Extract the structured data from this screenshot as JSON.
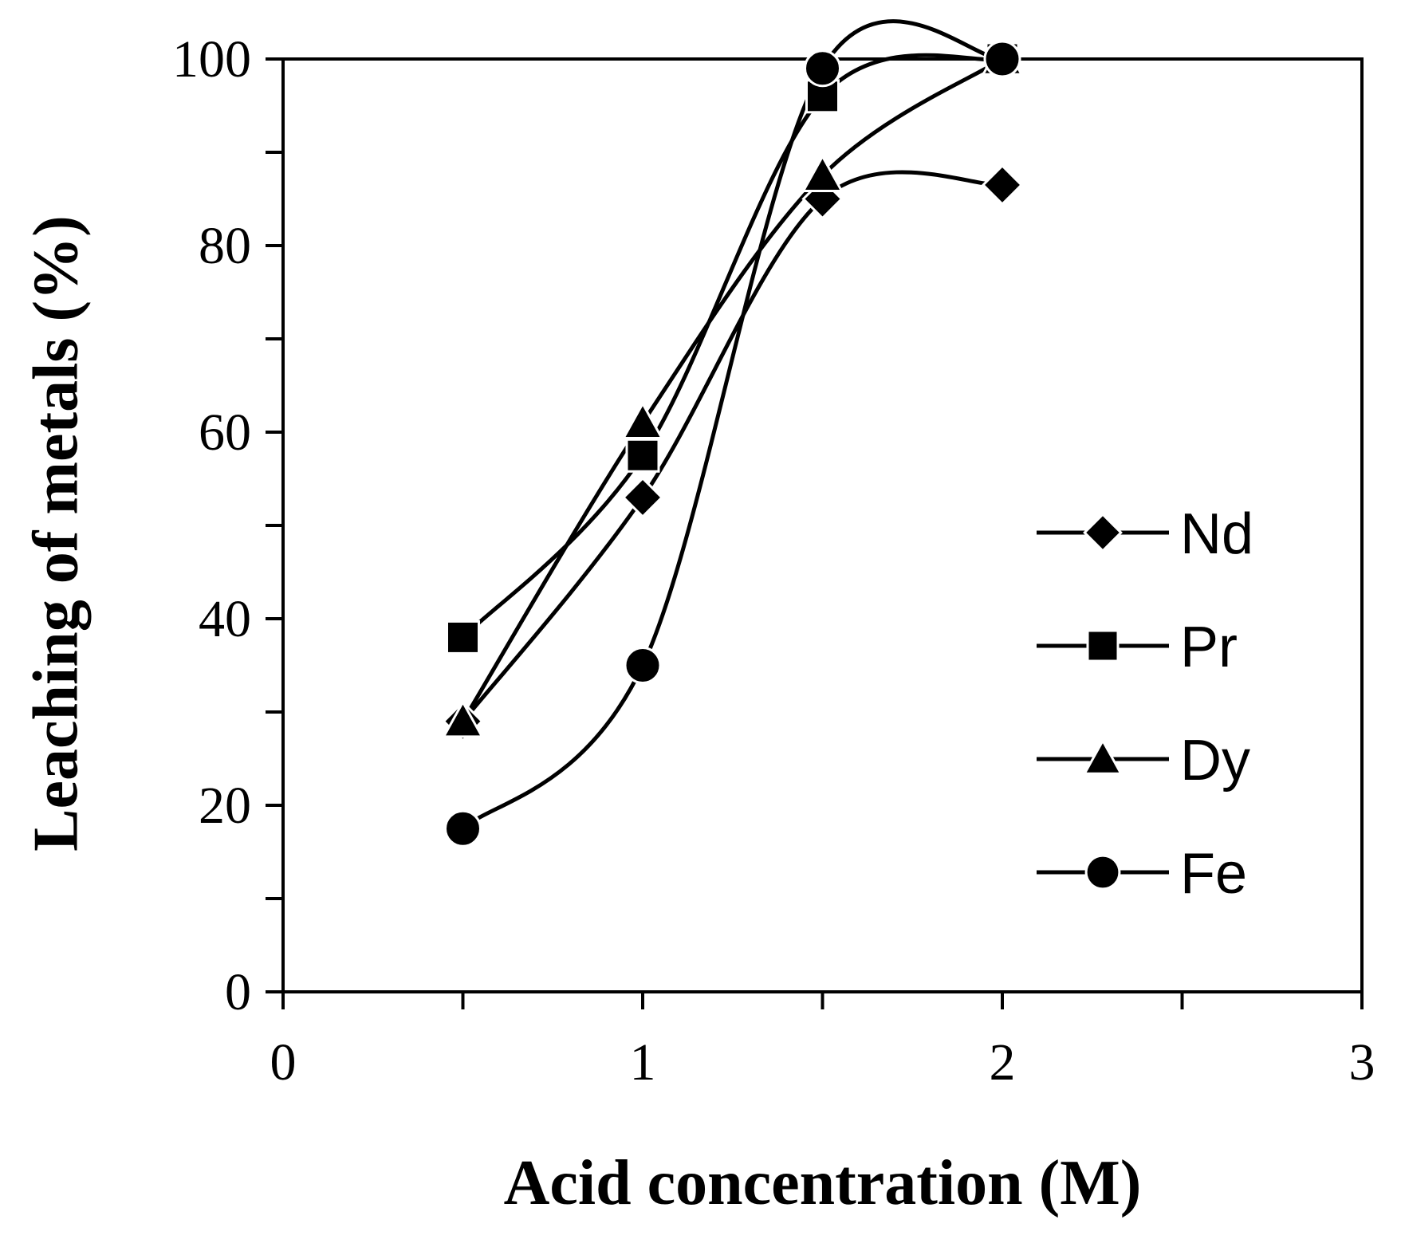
{
  "chart_data": {
    "type": "line",
    "xlabel": "Acid concentration (M)",
    "ylabel": "Leaching of metals (%)",
    "xlim": [
      0,
      3
    ],
    "ylim": [
      0,
      100
    ],
    "x_ticks": [
      0,
      1,
      2,
      3
    ],
    "y_ticks": [
      0,
      20,
      40,
      60,
      80,
      100
    ],
    "x_tick_labels": [
      "0",
      "1",
      "2",
      "3"
    ],
    "y_tick_labels": [
      "0",
      "20",
      "40",
      "60",
      "80",
      "100"
    ],
    "grid": false,
    "legend_position": "right",
    "smooth": true,
    "x": [
      0.5,
      1.0,
      1.5,
      2.0
    ],
    "series": [
      {
        "name": "Nd",
        "marker": "diamond",
        "values": [
          29,
          53,
          85,
          86.5
        ]
      },
      {
        "name": "Pr",
        "marker": "square",
        "values": [
          38,
          57.5,
          96,
          100
        ]
      },
      {
        "name": "Dy",
        "marker": "triangle",
        "values": [
          29,
          61,
          87.5,
          100
        ]
      },
      {
        "name": "Fe",
        "marker": "circle",
        "values": [
          17.5,
          35,
          99,
          100
        ]
      }
    ]
  }
}
